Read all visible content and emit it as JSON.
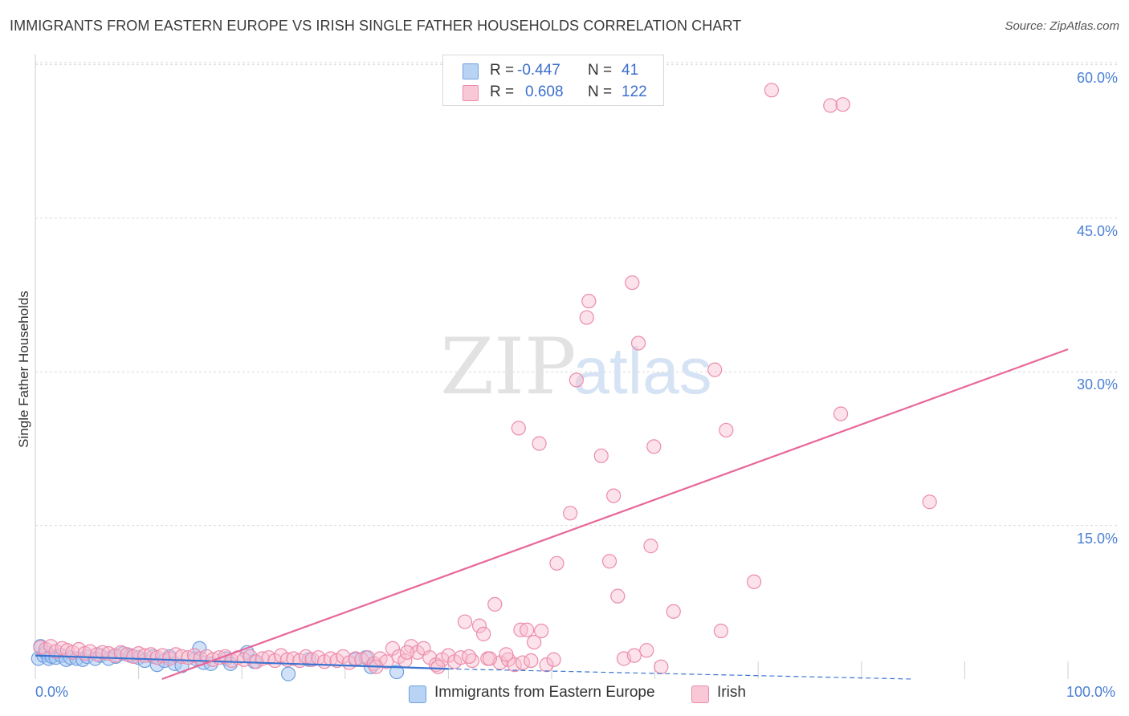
{
  "title": "IMMIGRANTS FROM EASTERN EUROPE VS IRISH SINGLE FATHER HOUSEHOLDS CORRELATION CHART",
  "source": "Source: ZipAtlas.com",
  "colors": {
    "blue": "#a9c8f3",
    "blue_stroke": "#6f9fe0",
    "blue_line": "#3a74d0",
    "pink": "#f6b6c9",
    "pink_stroke": "#ec8cab",
    "pink_line": "#e8679a",
    "tick_text": "#4a7fd4"
  },
  "legend": {
    "rows": [
      {
        "r_label": "R =",
        "r_value": "-0.447",
        "n_label": "N =",
        "n_value": "41"
      },
      {
        "r_label": "R =",
        "r_value": "0.608",
        "n_label": "N =",
        "n_value": "122"
      }
    ]
  },
  "chart_data": {
    "type": "scatter",
    "title": "IMMIGRANTS FROM EASTERN EUROPE VS IRISH SINGLE FATHER HOUSEHOLDS CORRELATION CHART",
    "xlabel": "",
    "ylabel": "Single Father Households",
    "xlim": [
      0,
      100
    ],
    "ylim": [
      0,
      63
    ],
    "x_tick_labels": [
      "0.0%",
      "100.0%"
    ],
    "y_ticks": [
      15,
      30,
      45,
      60
    ],
    "y_tick_labels": [
      "15.0%",
      "30.0%",
      "45.0%",
      "60.0%"
    ],
    "grid": true,
    "watermark": {
      "zip": "ZIP",
      "atlas": "atlas"
    },
    "series": [
      {
        "name": "Immigrants from Eastern Europe",
        "color": "#a9c8f3",
        "trend": {
          "x": [
            0,
            40
          ],
          "y": [
            2.3,
            1.0
          ],
          "dashed_to": [
            85,
            0.0
          ]
        },
        "points": [
          [
            0.3,
            2.0
          ],
          [
            0.5,
            3.2
          ],
          [
            0.8,
            2.3
          ],
          [
            1.0,
            2.6
          ],
          [
            1.3,
            2.0
          ],
          [
            1.6,
            2.2
          ],
          [
            2.0,
            2.1
          ],
          [
            2.5,
            2.3
          ],
          [
            3.0,
            1.9
          ],
          [
            3.4,
            2.1
          ],
          [
            4.0,
            2.0
          ],
          [
            4.6,
            1.9
          ],
          [
            5.0,
            2.2
          ],
          [
            5.8,
            2.0
          ],
          [
            6.3,
            2.3
          ],
          [
            7.1,
            2.0
          ],
          [
            7.8,
            2.2
          ],
          [
            8.5,
            2.5
          ],
          [
            9.2,
            2.3
          ],
          [
            10.0,
            2.1
          ],
          [
            10.6,
            1.8
          ],
          [
            11.4,
            2.2
          ],
          [
            11.8,
            1.4
          ],
          [
            12.5,
            1.8
          ],
          [
            13.0,
            2.2
          ],
          [
            13.5,
            1.5
          ],
          [
            14.2,
            1.3
          ],
          [
            15.5,
            2.0
          ],
          [
            15.9,
            3.0
          ],
          [
            16.3,
            1.6
          ],
          [
            18.5,
            2.0
          ],
          [
            18.9,
            1.5
          ],
          [
            20.5,
            2.6
          ],
          [
            21.2,
            1.7
          ],
          [
            24.5,
            0.5
          ],
          [
            26.5,
            1.9
          ],
          [
            31.0,
            1.9
          ],
          [
            32.0,
            2.1
          ],
          [
            32.5,
            1.2
          ],
          [
            35.0,
            0.7
          ],
          [
            17.0,
            1.5
          ]
        ]
      },
      {
        "name": "Irish",
        "color": "#f6b6c9",
        "trend": {
          "x": [
            0,
            100
          ],
          "y": [
            -4.5,
            32.2
          ]
        },
        "points": [
          [
            0.5,
            3.1
          ],
          [
            1.0,
            2.9
          ],
          [
            1.5,
            3.2
          ],
          [
            2.0,
            2.7
          ],
          [
            2.6,
            3.0
          ],
          [
            3.1,
            2.8
          ],
          [
            3.6,
            2.6
          ],
          [
            4.2,
            2.9
          ],
          [
            4.8,
            2.5
          ],
          [
            5.3,
            2.7
          ],
          [
            6.0,
            2.4
          ],
          [
            6.5,
            2.6
          ],
          [
            7.1,
            2.5
          ],
          [
            7.7,
            2.3
          ],
          [
            8.3,
            2.6
          ],
          [
            8.9,
            2.4
          ],
          [
            9.5,
            2.2
          ],
          [
            10.0,
            2.5
          ],
          [
            10.6,
            2.3
          ],
          [
            11.2,
            2.4
          ],
          [
            11.8,
            2.1
          ],
          [
            12.3,
            2.3
          ],
          [
            13.0,
            2.0
          ],
          [
            13.6,
            2.4
          ],
          [
            14.2,
            2.2
          ],
          [
            14.8,
            2.1
          ],
          [
            15.4,
            2.3
          ],
          [
            16.0,
            2.0
          ],
          [
            16.6,
            2.2
          ],
          [
            17.2,
            1.9
          ],
          [
            17.8,
            2.1
          ],
          [
            18.4,
            2.2
          ],
          [
            19.0,
            1.8
          ],
          [
            19.6,
            2.1
          ],
          [
            20.2,
            1.9
          ],
          [
            20.8,
            2.2
          ],
          [
            21.4,
            1.7
          ],
          [
            22.0,
            2.0
          ],
          [
            22.6,
            2.1
          ],
          [
            23.2,
            1.8
          ],
          [
            23.8,
            2.3
          ],
          [
            24.4,
            1.9
          ],
          [
            25.0,
            2.0
          ],
          [
            25.6,
            1.8
          ],
          [
            26.2,
            2.2
          ],
          [
            26.8,
            1.9
          ],
          [
            27.4,
            2.1
          ],
          [
            28.0,
            1.7
          ],
          [
            28.6,
            2.0
          ],
          [
            29.2,
            1.8
          ],
          [
            29.8,
            2.2
          ],
          [
            30.4,
            1.6
          ],
          [
            31.0,
            2.0
          ],
          [
            31.6,
            1.9
          ],
          [
            32.2,
            2.1
          ],
          [
            32.8,
            1.5
          ],
          [
            33.4,
            2.0
          ],
          [
            34.0,
            1.7
          ],
          [
            34.6,
            3.0
          ],
          [
            35.2,
            2.2
          ],
          [
            35.8,
            1.8
          ],
          [
            36.4,
            3.2
          ],
          [
            37.0,
            2.6
          ],
          [
            37.6,
            3.0
          ],
          [
            38.2,
            2.1
          ],
          [
            38.8,
            1.4
          ],
          [
            39.4,
            1.9
          ],
          [
            40.0,
            2.3
          ],
          [
            40.6,
            1.7
          ],
          [
            41.2,
            2.1
          ],
          [
            41.6,
            5.6
          ],
          [
            42.3,
            1.8
          ],
          [
            43.0,
            5.2
          ],
          [
            43.4,
            4.4
          ],
          [
            43.8,
            2.0
          ],
          [
            44.5,
            7.3
          ],
          [
            45.0,
            1.6
          ],
          [
            45.8,
            1.9
          ],
          [
            46.4,
            1.4
          ],
          [
            47.0,
            4.8
          ],
          [
            47.6,
            4.8
          ],
          [
            48.3,
            3.6
          ],
          [
            49.0,
            4.7
          ],
          [
            46.8,
            24.5
          ],
          [
            48.8,
            23.0
          ],
          [
            50.5,
            11.3
          ],
          [
            51.8,
            16.2
          ],
          [
            52.4,
            29.2
          ],
          [
            53.4,
            35.3
          ],
          [
            53.6,
            36.9
          ],
          [
            54.8,
            21.8
          ],
          [
            55.6,
            11.5
          ],
          [
            56.0,
            17.9
          ],
          [
            56.4,
            8.1
          ],
          [
            57.8,
            38.7
          ],
          [
            58.4,
            32.8
          ],
          [
            59.2,
            2.8
          ],
          [
            59.6,
            13.0
          ],
          [
            59.9,
            22.7
          ],
          [
            60.6,
            1.2
          ],
          [
            61.8,
            6.6
          ],
          [
            65.8,
            30.2
          ],
          [
            66.4,
            4.7
          ],
          [
            66.9,
            24.3
          ],
          [
            69.6,
            9.5
          ],
          [
            71.3,
            57.5
          ],
          [
            77.0,
            56.0
          ],
          [
            78.2,
            56.1
          ],
          [
            78.0,
            25.9
          ],
          [
            86.6,
            17.3
          ],
          [
            33.0,
            1.2
          ],
          [
            36.0,
            2.6
          ],
          [
            39.0,
            1.2
          ],
          [
            42.0,
            2.2
          ],
          [
            44.0,
            2.0
          ],
          [
            45.6,
            2.4
          ],
          [
            47.2,
            1.6
          ],
          [
            48.0,
            1.8
          ],
          [
            49.5,
            1.4
          ],
          [
            50.2,
            1.9
          ],
          [
            57.0,
            2.0
          ],
          [
            58.0,
            2.3
          ]
        ]
      }
    ]
  },
  "bottom_legend": [
    {
      "label": "Immigrants from Eastern Europe"
    },
    {
      "label": "Irish"
    }
  ]
}
